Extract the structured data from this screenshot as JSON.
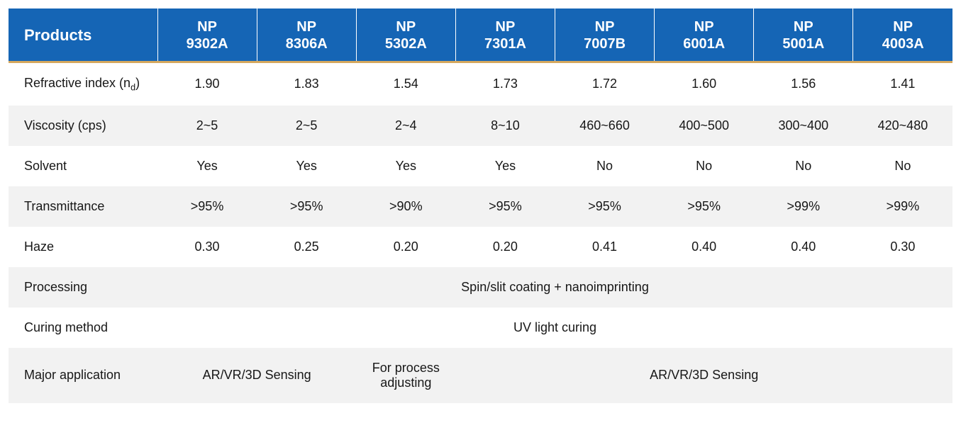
{
  "table": {
    "header_bg": "#1565b5",
    "header_fg": "#ffffff",
    "accent_color": "#d5a85e",
    "row_even_bg": "#f2f2f2",
    "row_odd_bg": "#ffffff",
    "text_color": "#171717",
    "first_col_header": "Products",
    "products": [
      {
        "line1": "NP",
        "line2": "9302A"
      },
      {
        "line1": "NP",
        "line2": "8306A"
      },
      {
        "line1": "NP",
        "line2": "5302A"
      },
      {
        "line1": "NP",
        "line2": "7301A"
      },
      {
        "line1": "NP",
        "line2": "7007B"
      },
      {
        "line1": "NP",
        "line2": "6001A"
      },
      {
        "line1": "NP",
        "line2": "5001A"
      },
      {
        "line1": "NP",
        "line2": "4003A"
      }
    ],
    "rows": [
      {
        "label_html": "Refractive index (n<span class=\"sub\">d</span>)",
        "cells": [
          {
            "text": "1.90"
          },
          {
            "text": "1.83"
          },
          {
            "text": "1.54"
          },
          {
            "text": "1.73"
          },
          {
            "text": "1.72"
          },
          {
            "text": "1.60"
          },
          {
            "text": "1.56"
          },
          {
            "text": "1.41"
          }
        ]
      },
      {
        "label": "Viscosity (cps)",
        "cells": [
          {
            "text": "2~5"
          },
          {
            "text": "2~5"
          },
          {
            "text": "2~4"
          },
          {
            "text": "8~10"
          },
          {
            "text": "460~660"
          },
          {
            "text": "400~500"
          },
          {
            "text": "300~400"
          },
          {
            "text": "420~480"
          }
        ]
      },
      {
        "label": "Solvent",
        "cells": [
          {
            "text": "Yes"
          },
          {
            "text": "Yes"
          },
          {
            "text": "Yes"
          },
          {
            "text": "Yes"
          },
          {
            "text": "No"
          },
          {
            "text": "No"
          },
          {
            "text": "No"
          },
          {
            "text": "No"
          }
        ]
      },
      {
        "label": "Transmittance",
        "cells": [
          {
            "text": ">95%"
          },
          {
            "text": ">95%"
          },
          {
            "text": ">90%"
          },
          {
            "text": ">95%"
          },
          {
            "text": ">95%"
          },
          {
            "text": ">95%"
          },
          {
            "text": ">99%"
          },
          {
            "text": ">99%"
          }
        ]
      },
      {
        "label": "Haze",
        "cells": [
          {
            "text": "0.30"
          },
          {
            "text": "0.25"
          },
          {
            "text": "0.20"
          },
          {
            "text": "0.20"
          },
          {
            "text": "0.41"
          },
          {
            "text": "0.40"
          },
          {
            "text": "0.40"
          },
          {
            "text": "0.30"
          }
        ]
      },
      {
        "label": "Processing",
        "cells": [
          {
            "text": "Spin/slit coating + nanoimprinting",
            "colspan": 8
          }
        ]
      },
      {
        "label": "Curing method",
        "cells": [
          {
            "text": "UV light curing",
            "colspan": 8
          }
        ]
      },
      {
        "label": "Major application",
        "cells": [
          {
            "text": "AR/VR/3D Sensing",
            "colspan": 2
          },
          {
            "text_html": "For process<br>adjusting",
            "colspan": 1
          },
          {
            "text": "AR/VR/3D Sensing",
            "colspan": 5
          }
        ]
      }
    ]
  }
}
